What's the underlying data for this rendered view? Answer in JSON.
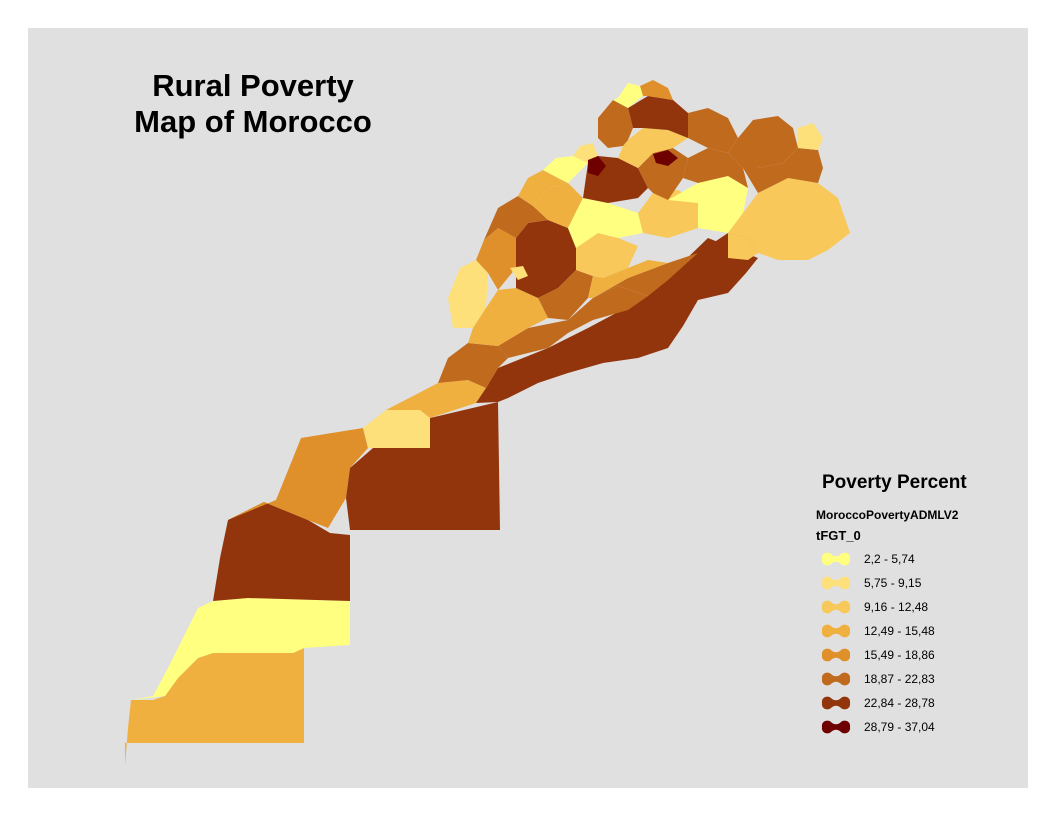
{
  "map": {
    "title_line1": "Rural Poverty",
    "title_line2": "Map of Morocco",
    "background_color": "#e0e0e0",
    "legend": {
      "title": "Poverty Percent",
      "layer_name": "MoroccoPovertyADMLV2",
      "field_name": "tFGT_0",
      "classes": [
        {
          "label": "2,2 - 5,74",
          "color": "#ffff80"
        },
        {
          "label": "5,75 - 9,15",
          "color": "#fde07a"
        },
        {
          "label": "9,16 - 12,48",
          "color": "#f8c95a"
        },
        {
          "label": "12,49 - 15,48",
          "color": "#f0b040"
        },
        {
          "label": "15,49 - 18,86",
          "color": "#e0902a"
        },
        {
          "label": "18,87 - 22,83",
          "color": "#c06a1e"
        },
        {
          "label": "22,84 - 28,78",
          "color": "#93350c"
        },
        {
          "label": "28,79 - 37,04",
          "color": "#6e0000"
        }
      ]
    }
  }
}
